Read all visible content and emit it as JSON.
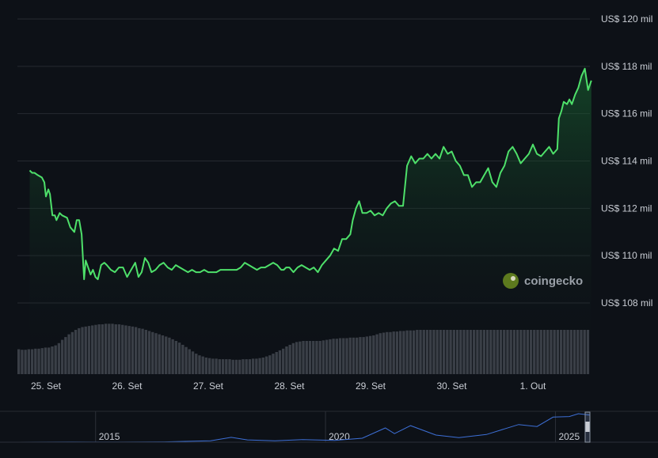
{
  "chart_data": {
    "type": "area",
    "yticks": [
      "US$ 120 mil",
      "US$ 118 mil",
      "US$ 116 mil",
      "US$ 114 mil",
      "US$ 112 mil",
      "US$ 110 mil",
      "US$ 108 mil"
    ],
    "ytick_values": [
      120,
      118,
      116,
      114,
      112,
      110,
      108
    ],
    "ylim": [
      107,
      121
    ],
    "xticks": [
      "25. Set",
      "26. Set",
      "27. Set",
      "28. Set",
      "29. Set",
      "30. Set",
      "1. Out"
    ],
    "xlim": [
      24.8,
      31.7
    ],
    "colors": {
      "line": "#4ee06a",
      "fill": "#1a6b34",
      "volume": "#3a3f47",
      "grid": "#262a31",
      "navigator": "#3d6fd6"
    },
    "series": [
      {
        "values": [
          [
            24.8,
            113.6
          ],
          [
            24.83,
            113.5
          ],
          [
            24.86,
            113.5
          ],
          [
            24.9,
            113.4
          ],
          [
            24.95,
            113.3
          ],
          [
            24.98,
            113.1
          ],
          [
            25.0,
            112.5
          ],
          [
            25.03,
            112.8
          ],
          [
            25.05,
            112.6
          ],
          [
            25.08,
            111.7
          ],
          [
            25.11,
            111.7
          ],
          [
            25.13,
            111.5
          ],
          [
            25.17,
            111.8
          ],
          [
            25.2,
            111.7
          ],
          [
            25.26,
            111.6
          ],
          [
            25.3,
            111.2
          ],
          [
            25.35,
            111.0
          ],
          [
            25.38,
            111.5
          ],
          [
            25.41,
            111.5
          ],
          [
            25.44,
            110.9
          ],
          [
            25.47,
            109.0
          ],
          [
            25.49,
            109.8
          ],
          [
            25.52,
            109.5
          ],
          [
            25.55,
            109.2
          ],
          [
            25.58,
            109.4
          ],
          [
            25.61,
            109.1
          ],
          [
            25.64,
            109.0
          ],
          [
            25.68,
            109.6
          ],
          [
            25.72,
            109.7
          ],
          [
            25.75,
            109.6
          ],
          [
            25.8,
            109.4
          ],
          [
            25.85,
            109.3
          ],
          [
            25.9,
            109.5
          ],
          [
            25.95,
            109.5
          ],
          [
            26.0,
            109.1
          ],
          [
            26.05,
            109.4
          ],
          [
            26.1,
            109.7
          ],
          [
            26.14,
            109.1
          ],
          [
            26.18,
            109.3
          ],
          [
            26.22,
            109.9
          ],
          [
            26.26,
            109.7
          ],
          [
            26.3,
            109.3
          ],
          [
            26.35,
            109.4
          ],
          [
            26.4,
            109.6
          ],
          [
            26.45,
            109.7
          ],
          [
            26.5,
            109.5
          ],
          [
            26.55,
            109.4
          ],
          [
            26.6,
            109.6
          ],
          [
            26.65,
            109.5
          ],
          [
            26.7,
            109.4
          ],
          [
            26.75,
            109.3
          ],
          [
            26.8,
            109.4
          ],
          [
            26.85,
            109.3
          ],
          [
            26.9,
            109.3
          ],
          [
            26.95,
            109.4
          ],
          [
            27.0,
            109.3
          ],
          [
            27.05,
            109.3
          ],
          [
            27.1,
            109.3
          ],
          [
            27.15,
            109.4
          ],
          [
            27.2,
            109.4
          ],
          [
            27.25,
            109.4
          ],
          [
            27.3,
            109.4
          ],
          [
            27.35,
            109.4
          ],
          [
            27.4,
            109.5
          ],
          [
            27.45,
            109.7
          ],
          [
            27.5,
            109.6
          ],
          [
            27.55,
            109.5
          ],
          [
            27.6,
            109.4
          ],
          [
            27.65,
            109.5
          ],
          [
            27.7,
            109.5
          ],
          [
            27.75,
            109.6
          ],
          [
            27.8,
            109.7
          ],
          [
            27.85,
            109.6
          ],
          [
            27.9,
            109.4
          ],
          [
            27.93,
            109.4
          ],
          [
            27.96,
            109.5
          ],
          [
            28.0,
            109.5
          ],
          [
            28.05,
            109.3
          ],
          [
            28.1,
            109.5
          ],
          [
            28.15,
            109.6
          ],
          [
            28.2,
            109.5
          ],
          [
            28.25,
            109.4
          ],
          [
            28.3,
            109.5
          ],
          [
            28.35,
            109.3
          ],
          [
            28.4,
            109.6
          ],
          [
            28.45,
            109.8
          ],
          [
            28.5,
            110.0
          ],
          [
            28.55,
            110.3
          ],
          [
            28.6,
            110.2
          ],
          [
            28.65,
            110.7
          ],
          [
            28.7,
            110.7
          ],
          [
            28.75,
            110.9
          ],
          [
            28.78,
            111.5
          ],
          [
            28.82,
            112.0
          ],
          [
            28.86,
            112.3
          ],
          [
            28.9,
            111.8
          ],
          [
            28.95,
            111.8
          ],
          [
            29.0,
            111.9
          ],
          [
            29.05,
            111.7
          ],
          [
            29.1,
            111.8
          ],
          [
            29.15,
            111.7
          ],
          [
            29.2,
            112.0
          ],
          [
            29.25,
            112.2
          ],
          [
            29.3,
            112.3
          ],
          [
            29.35,
            112.1
          ],
          [
            29.4,
            112.1
          ],
          [
            29.45,
            113.8
          ],
          [
            29.5,
            114.2
          ],
          [
            29.55,
            113.9
          ],
          [
            29.6,
            114.1
          ],
          [
            29.65,
            114.1
          ],
          [
            29.7,
            114.3
          ],
          [
            29.75,
            114.1
          ],
          [
            29.8,
            114.3
          ],
          [
            29.85,
            114.1
          ],
          [
            29.9,
            114.6
          ],
          [
            29.95,
            114.3
          ],
          [
            30.0,
            114.4
          ],
          [
            30.05,
            114.0
          ],
          [
            30.1,
            113.8
          ],
          [
            30.15,
            113.4
          ],
          [
            30.2,
            113.4
          ],
          [
            30.25,
            112.9
          ],
          [
            30.3,
            113.1
          ],
          [
            30.35,
            113.1
          ],
          [
            30.4,
            113.4
          ],
          [
            30.45,
            113.7
          ],
          [
            30.5,
            113.1
          ],
          [
            30.55,
            112.9
          ],
          [
            30.6,
            113.5
          ],
          [
            30.65,
            113.8
          ],
          [
            30.7,
            114.4
          ],
          [
            30.75,
            114.6
          ],
          [
            30.8,
            114.3
          ],
          [
            30.85,
            113.9
          ],
          [
            30.9,
            114.1
          ],
          [
            30.95,
            114.3
          ],
          [
            31.0,
            114.7
          ],
          [
            31.05,
            114.3
          ],
          [
            31.1,
            114.2
          ],
          [
            31.15,
            114.4
          ],
          [
            31.2,
            114.6
          ],
          [
            31.25,
            114.3
          ],
          [
            31.3,
            114.5
          ],
          [
            31.32,
            115.8
          ],
          [
            31.35,
            116.1
          ],
          [
            31.38,
            116.5
          ],
          [
            31.42,
            116.4
          ],
          [
            31.45,
            116.6
          ],
          [
            31.48,
            116.4
          ],
          [
            31.52,
            116.8
          ],
          [
            31.56,
            117.1
          ],
          [
            31.6,
            117.6
          ],
          [
            31.64,
            117.9
          ],
          [
            31.68,
            117.0
          ],
          [
            31.72,
            117.4
          ]
        ]
      }
    ],
    "volume_levels": [
      0.45,
      0.44,
      0.44,
      0.45,
      0.45,
      0.46,
      0.46,
      0.47,
      0.48,
      0.48,
      0.5,
      0.52,
      0.56,
      0.62,
      0.67,
      0.72,
      0.76,
      0.8,
      0.83,
      0.85,
      0.86,
      0.87,
      0.88,
      0.89,
      0.9,
      0.9,
      0.91,
      0.91,
      0.91,
      0.9,
      0.9,
      0.89,
      0.88,
      0.87,
      0.86,
      0.85,
      0.83,
      0.82,
      0.8,
      0.78,
      0.76,
      0.74,
      0.72,
      0.7,
      0.68,
      0.66,
      0.63,
      0.6,
      0.57,
      0.53,
      0.49,
      0.45,
      0.41,
      0.37,
      0.34,
      0.32,
      0.3,
      0.29,
      0.28,
      0.28,
      0.27,
      0.27,
      0.27,
      0.27,
      0.26,
      0.26,
      0.26,
      0.27,
      0.27,
      0.27,
      0.28,
      0.28,
      0.29,
      0.3,
      0.32,
      0.34,
      0.37,
      0.4,
      0.43,
      0.46,
      0.5,
      0.53,
      0.56,
      0.58,
      0.59,
      0.6,
      0.6,
      0.6,
      0.6,
      0.6,
      0.6,
      0.61,
      0.62,
      0.63,
      0.64,
      0.64,
      0.65,
      0.65,
      0.65,
      0.66,
      0.66,
      0.66,
      0.67,
      0.67,
      0.68,
      0.69,
      0.7,
      0.72,
      0.74,
      0.75,
      0.76,
      0.76,
      0.77,
      0.77,
      0.78,
      0.78,
      0.79,
      0.79,
      0.79,
      0.8,
      0.8,
      0.8,
      0.8,
      0.8,
      0.8,
      0.8,
      0.8,
      0.8,
      0.8,
      0.8,
      0.8,
      0.8,
      0.8,
      0.8,
      0.8,
      0.8,
      0.8,
      0.8,
      0.8,
      0.8,
      0.8,
      0.8,
      0.8,
      0.8,
      0.8,
      0.8,
      0.8,
      0.8,
      0.8,
      0.8,
      0.8,
      0.8,
      0.8,
      0.8,
      0.8,
      0.8,
      0.8,
      0.8,
      0.8,
      0.8,
      0.8,
      0.8,
      0.8,
      0.8,
      0.8,
      0.8,
      0.8,
      0.8,
      0.8,
      0.8,
      0.8
    ],
    "navigator": {
      "labels": [
        "2015",
        "2020",
        "2025"
      ],
      "label_years": [
        2015,
        2020,
        2025
      ],
      "xlim": [
        2013.3,
        2025.75
      ],
      "values": [
        [
          2013.3,
          0.0
        ],
        [
          2014.5,
          0.005
        ],
        [
          2015.5,
          0.003
        ],
        [
          2016.5,
          0.01
        ],
        [
          2017.5,
          0.05
        ],
        [
          2017.95,
          0.17
        ],
        [
          2018.3,
          0.08
        ],
        [
          2018.9,
          0.05
        ],
        [
          2019.5,
          0.09
        ],
        [
          2020.2,
          0.06
        ],
        [
          2020.8,
          0.14
        ],
        [
          2021.3,
          0.5
        ],
        [
          2021.5,
          0.3
        ],
        [
          2021.85,
          0.58
        ],
        [
          2022.4,
          0.25
        ],
        [
          2022.9,
          0.16
        ],
        [
          2023.5,
          0.27
        ],
        [
          2024.2,
          0.62
        ],
        [
          2024.6,
          0.55
        ],
        [
          2024.95,
          0.88
        ],
        [
          2025.3,
          0.9
        ],
        [
          2025.5,
          1.0
        ],
        [
          2025.75,
          0.95
        ]
      ]
    },
    "watermark": "coingecko"
  }
}
